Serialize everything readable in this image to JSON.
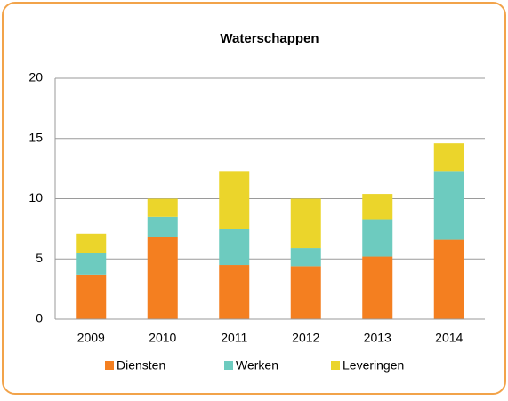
{
  "chart_data": {
    "type": "stacked_bar",
    "title": "Waterschappen",
    "categories": [
      "2009",
      "2010",
      "2011",
      "2012",
      "2013",
      "2014"
    ],
    "series": [
      {
        "name": "Diensten",
        "color": "#f47f20",
        "values": [
          3.7,
          6.8,
          4.5,
          4.4,
          5.2,
          6.6
        ]
      },
      {
        "name": "Werken",
        "color": "#6dcbbf",
        "values": [
          1.8,
          1.7,
          3.0,
          1.5,
          3.1,
          5.7
        ]
      },
      {
        "name": "Leveringen",
        "color": "#ebd52b",
        "values": [
          1.6,
          1.5,
          4.8,
          4.1,
          2.1,
          2.3
        ]
      }
    ],
    "ylim": [
      0,
      20
    ],
    "yticks": [
      0,
      5,
      10,
      15,
      20
    ],
    "grid": true,
    "legend": "bottom"
  }
}
